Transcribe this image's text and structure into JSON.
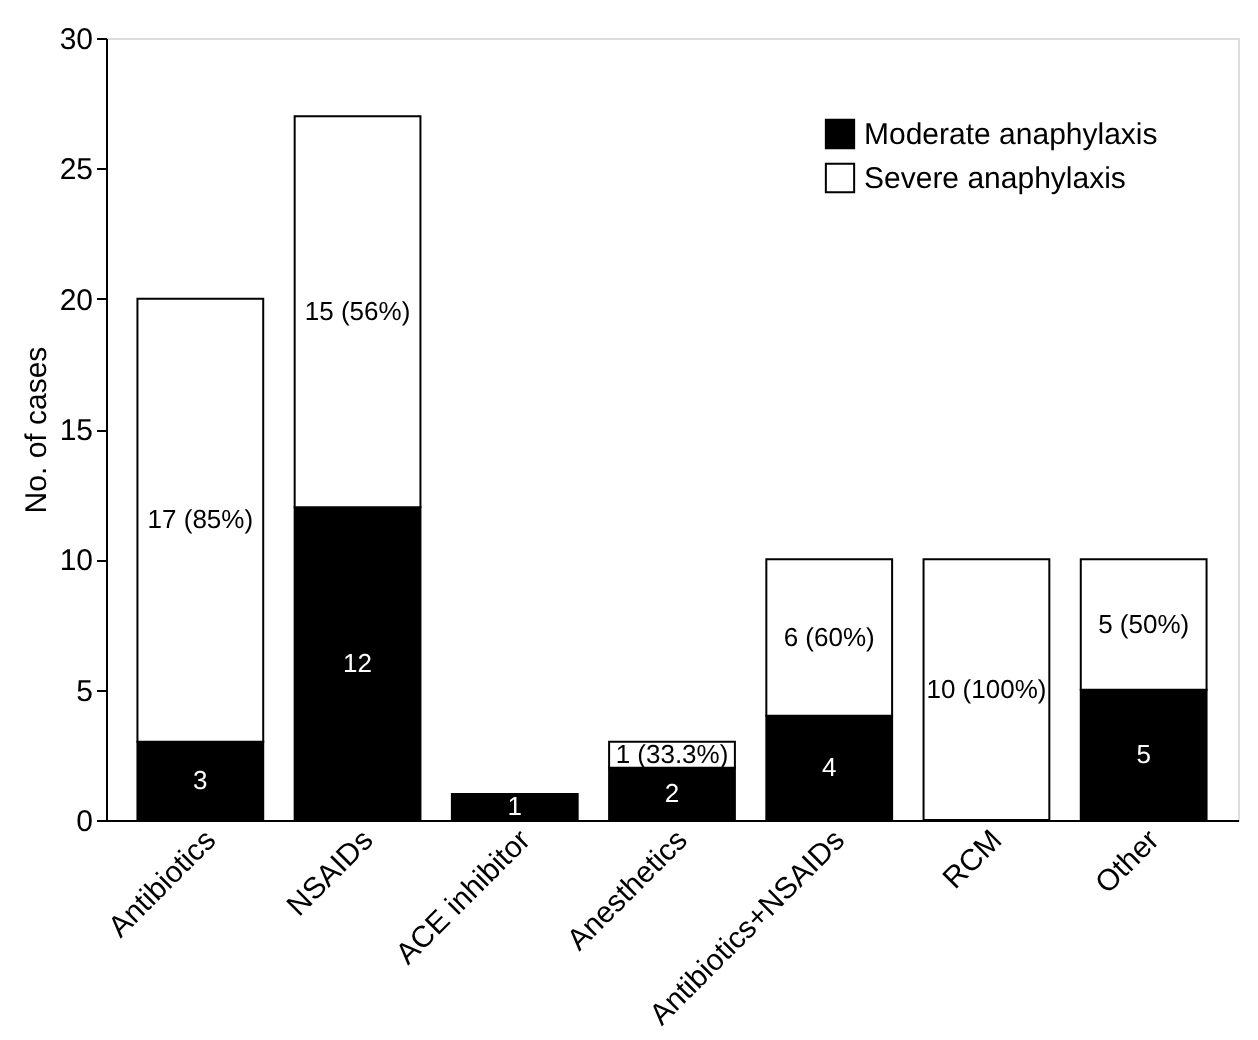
{
  "chart_data": {
    "type": "bar",
    "stacked": true,
    "ylabel": "No. of cases",
    "categories": [
      "Antibiotics",
      "NSAIDs",
      "ACE inhibitor",
      "Anesthetics",
      "Antibiotics+NSAIDs",
      "RCM",
      "Other"
    ],
    "series": [
      {
        "name": "Moderate anaphylaxis",
        "color": "#000000",
        "values": [
          3,
          12,
          1,
          2,
          4,
          null,
          5
        ],
        "value_labels": [
          "3",
          "12",
          "1",
          "2",
          "4",
          null,
          "5"
        ]
      },
      {
        "name": "Severe anaphylaxis",
        "color": "#ffffff",
        "values": [
          17,
          15,
          null,
          1,
          6,
          10,
          5
        ],
        "value_labels": [
          "17 (85%)",
          "15 (56%)",
          null,
          "1 (33.3%)",
          "6 (60%)",
          "10 (100%)",
          "5 (50%)"
        ]
      }
    ],
    "ylim": [
      0,
      30
    ],
    "yticks": [
      0,
      5,
      10,
      15,
      20,
      25,
      30
    ],
    "grid": false,
    "legend": "top right"
  }
}
